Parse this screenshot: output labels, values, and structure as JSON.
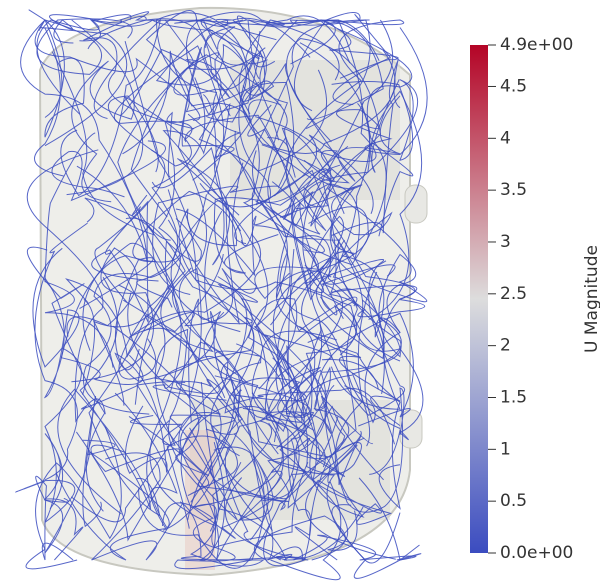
{
  "colorbar": {
    "title": "U Magnitude",
    "range": [
      0,
      4.9
    ],
    "ticks": [
      {
        "value": 0,
        "label": "0.0e+00"
      },
      0.5,
      1,
      1.5,
      2,
      2.5,
      3,
      3.5,
      4,
      4.5,
      {
        "value": 4.9,
        "label": "4.9e+00"
      }
    ],
    "colors": [
      "#3b4cc0",
      "#dddddd",
      "#b40426"
    ]
  }
}
